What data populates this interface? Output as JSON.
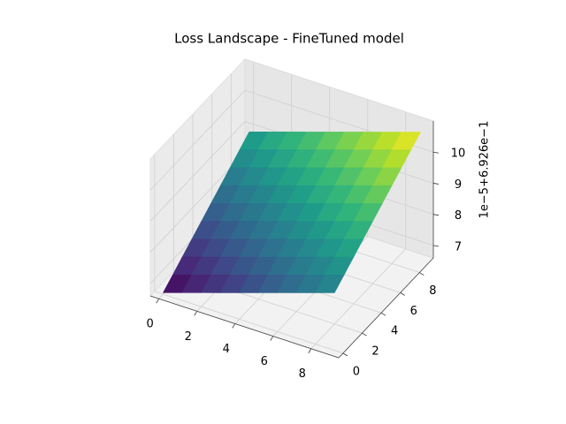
{
  "chart_data": {
    "type": "surface",
    "title": "Loss Landscape - FineTuned model",
    "z_offset_label": "1e−5+6.926e−1",
    "x": [
      0,
      1,
      2,
      3,
      4,
      5,
      6,
      7,
      8,
      9
    ],
    "y": [
      0,
      1,
      2,
      3,
      4,
      5,
      6,
      7,
      8,
      9
    ],
    "z": [
      [
        6.65,
        6.85,
        7.05,
        7.25,
        7.45,
        7.65,
        7.85,
        8.05,
        8.25,
        8.45
      ],
      [
        6.9,
        7.1,
        7.3,
        7.5,
        7.7,
        7.9,
        8.1,
        8.3,
        8.5,
        8.7
      ],
      [
        7.15,
        7.35,
        7.55,
        7.75,
        7.95,
        8.15,
        8.35,
        8.55,
        8.75,
        8.95
      ],
      [
        7.4,
        7.6,
        7.8,
        8.0,
        8.2,
        8.4,
        8.6,
        8.8,
        9.0,
        9.2
      ],
      [
        7.65,
        7.85,
        8.05,
        8.25,
        8.45,
        8.65,
        8.85,
        9.05,
        9.25,
        9.45
      ],
      [
        7.9,
        8.1,
        8.3,
        8.5,
        8.7,
        8.9,
        9.1,
        9.3,
        9.5,
        9.7
      ],
      [
        8.15,
        8.35,
        8.55,
        8.75,
        8.95,
        9.15,
        9.35,
        9.55,
        9.75,
        9.95
      ],
      [
        8.4,
        8.6,
        8.8,
        9.0,
        9.2,
        9.4,
        9.6,
        9.8,
        10.0,
        10.2
      ],
      [
        8.65,
        8.85,
        9.05,
        9.25,
        9.45,
        9.65,
        9.85,
        10.05,
        10.25,
        10.45
      ],
      [
        8.9,
        9.1,
        9.3,
        9.5,
        9.7,
        9.9,
        10.1,
        10.3,
        10.5,
        10.7
      ]
    ],
    "colormap": "viridis",
    "xlim": [
      -0.45,
      9.45
    ],
    "ylim": [
      -0.45,
      9.45
    ],
    "zlim": [
      6.6,
      11.0
    ],
    "xticks": [
      0,
      2,
      4,
      6,
      8
    ],
    "yticks": [
      0,
      2,
      4,
      6,
      8
    ],
    "zticks": [
      7,
      8,
      9,
      10
    ],
    "grid": true
  }
}
